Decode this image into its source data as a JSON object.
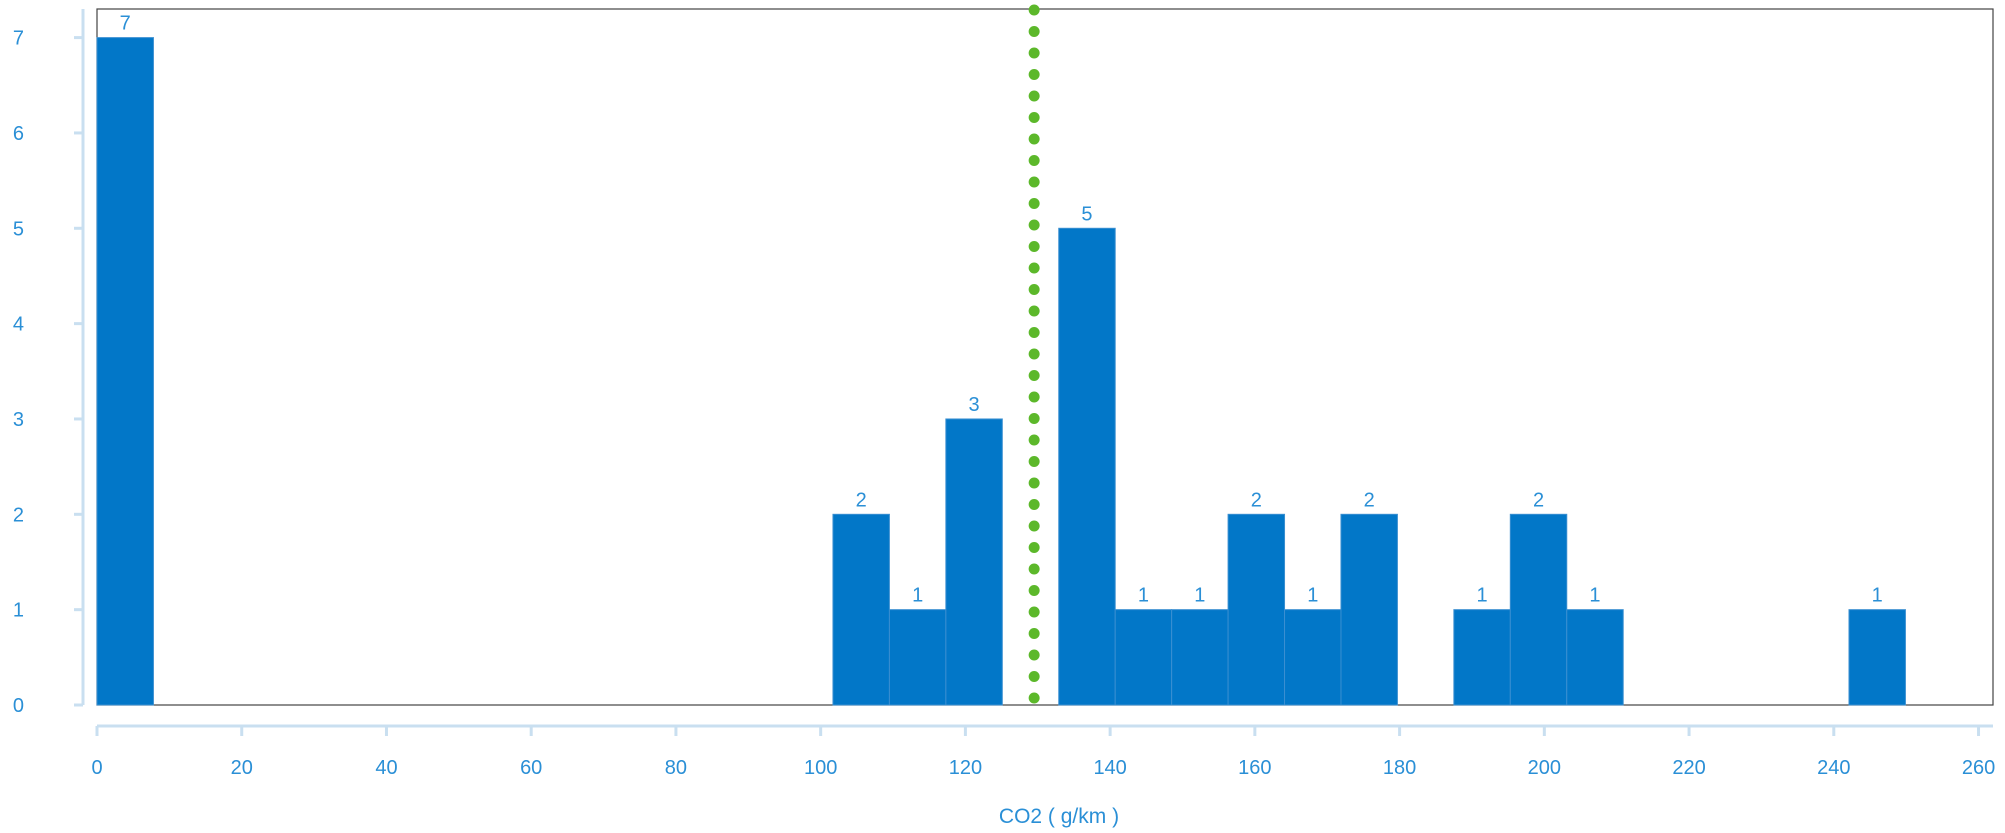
{
  "chart_data": {
    "type": "bar",
    "xlabel": "CO2 ( g/km )",
    "ylabel": "",
    "xlim": [
      0,
      262
    ],
    "ylim": [
      0,
      7.3
    ],
    "xticks": [
      "0",
      "20",
      "40",
      "60",
      "80",
      "100",
      "120",
      "140",
      "160",
      "180",
      "200",
      "220",
      "240",
      "260"
    ],
    "yticks": [
      "0",
      "1",
      "2",
      "3",
      "4",
      "5",
      "6",
      "7"
    ],
    "bin_width": 7.8,
    "bars": [
      {
        "x0": 0,
        "x1": 7.8,
        "value": 7,
        "label": "7"
      },
      {
        "x0": 101.7,
        "x1": 109.5,
        "value": 2,
        "label": "2"
      },
      {
        "x0": 109.5,
        "x1": 117.3,
        "value": 1,
        "label": "1"
      },
      {
        "x0": 117.3,
        "x1": 125.1,
        "value": 3,
        "label": "3"
      },
      {
        "x0": 132.9,
        "x1": 140.7,
        "value": 5,
        "label": "5"
      },
      {
        "x0": 140.7,
        "x1": 148.5,
        "value": 1,
        "label": "1"
      },
      {
        "x0": 148.5,
        "x1": 156.3,
        "value": 1,
        "label": "1"
      },
      {
        "x0": 156.3,
        "x1": 164.1,
        "value": 2,
        "label": "2"
      },
      {
        "x0": 164.1,
        "x1": 171.9,
        "value": 1,
        "label": "1"
      },
      {
        "x0": 171.9,
        "x1": 179.7,
        "value": 2,
        "label": "2"
      },
      {
        "x0": 187.5,
        "x1": 195.3,
        "value": 1,
        "label": "1"
      },
      {
        "x0": 195.3,
        "x1": 203.1,
        "value": 2,
        "label": "2"
      },
      {
        "x0": 203.1,
        "x1": 210.9,
        "value": 1,
        "label": "1"
      },
      {
        "x0": 242.1,
        "x1": 249.9,
        "value": 1,
        "label": "1"
      }
    ],
    "reference_line": {
      "x": 129.5,
      "style": "dotted"
    },
    "grid": false,
    "colors": {
      "bar": "#0277c8",
      "bar_edge": "#3a8fd1",
      "text": "#2a8fd6",
      "reference_line": "#5cb82a",
      "axis": "#c9dff0",
      "frame": "#444444"
    }
  }
}
